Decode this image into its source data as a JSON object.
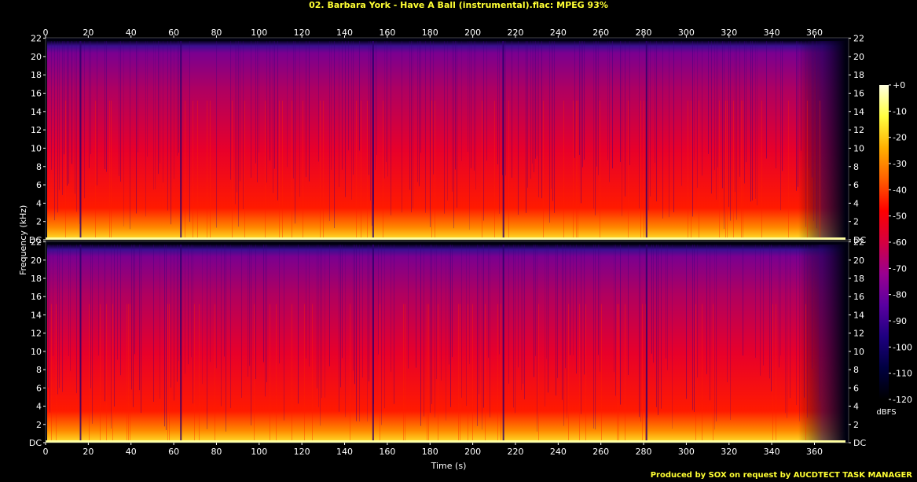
{
  "title": "02. Barbara York - Have A Ball (instrumental).flac: MPEG 93%",
  "credit": "Produced by SOX on request by AUCDTECT TASK MANAGER",
  "chart_data": {
    "type": "heatmap",
    "title": "02. Barbara York - Have A Ball (instrumental).flac: MPEG 93%",
    "xlabel": "Time (s)",
    "ylabel": "Frequency (kHz)",
    "xlim": [
      0,
      376
    ],
    "ylim": [
      0,
      22.05
    ],
    "x_ticks": [
      "0",
      "20",
      "40",
      "60",
      "80",
      "100",
      "120",
      "140",
      "160",
      "180",
      "200",
      "220",
      "240",
      "260",
      "280",
      "300",
      "320",
      "340",
      "360"
    ],
    "x_tick_values": [
      0,
      20,
      40,
      60,
      80,
      100,
      120,
      140,
      160,
      180,
      200,
      220,
      240,
      260,
      280,
      300,
      320,
      340,
      360
    ],
    "y_ticks": [
      "DC",
      "2",
      "4",
      "6",
      "8",
      "10",
      "12",
      "14",
      "16",
      "18",
      "20",
      "22"
    ],
    "y_tick_values": [
      0,
      2,
      4,
      6,
      8,
      10,
      12,
      14,
      16,
      18,
      20,
      22
    ],
    "channels": 2,
    "colorbar": {
      "unit": "dBFS",
      "ticks": [
        "+0",
        "-10",
        "-20",
        "-30",
        "-40",
        "-50",
        "-60",
        "-70",
        "-80",
        "-90",
        "-100",
        "-110",
        "-120"
      ],
      "range": [
        -120,
        0
      ],
      "colors": [
        "#000000",
        "#000040",
        "#1e0080",
        "#5a00a0",
        "#9a0090",
        "#d40040",
        "#ff0000",
        "#ff6000",
        "#ffb000",
        "#ffff40",
        "#ffffe0"
      ]
    },
    "grid": false,
    "cutoff_khz": 21.7,
    "dark_gaps_s": [
      16,
      63,
      153,
      214,
      281
    ]
  }
}
